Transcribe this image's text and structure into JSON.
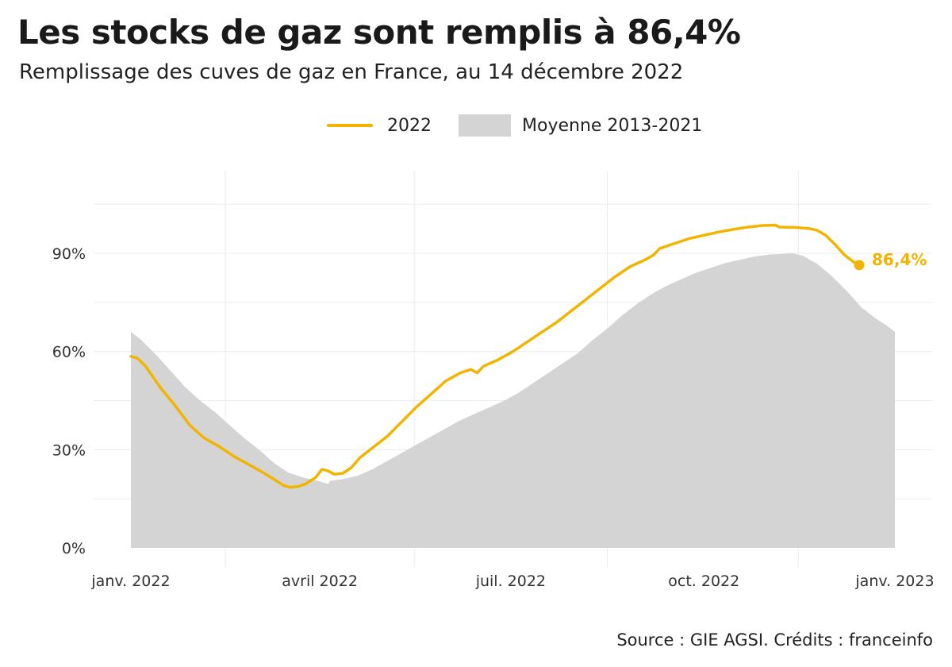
{
  "header": {
    "title": "Les stocks de gaz sont remplis à 86,4%",
    "subtitle": "Remplissage des cuves de gaz en France, au 14 décembre 2022"
  },
  "legend": [
    {
      "label": "2022",
      "kind": "line"
    },
    {
      "label": "Moyenne 2013-2021",
      "kind": "area"
    }
  ],
  "footer": {
    "source": "Source : GIE AGSI. Crédits : franceinfo"
  },
  "colors": {
    "line_2022": "#f2b400",
    "area_avg": "#d4d4d4",
    "grid": "#ececec",
    "text": "#222222"
  },
  "chart_data": {
    "type": "line",
    "title": "Les stocks de gaz sont remplis à 86,4%",
    "subtitle": "Remplissage des cuves de gaz en France, au 14 décembre 2022",
    "x_type": "date",
    "xlim": [
      "2022-01-01",
      "2022-12-31"
    ],
    "ylim": [
      0,
      105
    ],
    "grid": true,
    "legend_position": "top",
    "x_ticks": [
      {
        "date": "2022-01-01",
        "label": "janv. 2022"
      },
      {
        "date": "2022-04-01",
        "label": "avril 2022"
      },
      {
        "date": "2022-07-01",
        "label": "juil. 2022"
      },
      {
        "date": "2022-10-01",
        "label": "oct. 2022"
      },
      {
        "date": "2022-12-31",
        "label": "janv. 2023"
      }
    ],
    "y_ticks": [
      {
        "value": 0,
        "label": "0%"
      },
      {
        "value": 30,
        "label": "30%"
      },
      {
        "value": 60,
        "label": "60%"
      },
      {
        "value": 90,
        "label": "90%"
      }
    ],
    "series": [
      {
        "name": "2022",
        "type": "line",
        "color": "#f2b400",
        "points": [
          [
            "2022-01-01",
            58.5
          ],
          [
            "2022-01-04",
            58.0
          ],
          [
            "2022-01-08",
            55.5
          ],
          [
            "2022-01-15",
            49.0
          ],
          [
            "2022-01-22",
            43.5
          ],
          [
            "2022-01-29",
            37.5
          ],
          [
            "2022-02-05",
            33.5
          ],
          [
            "2022-02-12",
            31.0
          ],
          [
            "2022-02-19",
            28.0
          ],
          [
            "2022-02-26",
            25.5
          ],
          [
            "2022-03-05",
            23.0
          ],
          [
            "2022-03-10",
            21.0
          ],
          [
            "2022-03-15",
            19.0
          ],
          [
            "2022-03-18",
            18.5
          ],
          [
            "2022-03-22",
            18.8
          ],
          [
            "2022-03-25",
            19.5
          ],
          [
            "2022-03-30",
            21.5
          ],
          [
            "2022-04-02",
            24.0
          ],
          [
            "2022-04-05",
            23.5
          ],
          [
            "2022-04-08",
            22.5
          ],
          [
            "2022-04-12",
            22.8
          ],
          [
            "2022-04-16",
            24.5
          ],
          [
            "2022-04-20",
            27.5
          ],
          [
            "2022-04-26",
            30.5
          ],
          [
            "2022-05-03",
            34.0
          ],
          [
            "2022-05-10",
            38.5
          ],
          [
            "2022-05-17",
            43.0
          ],
          [
            "2022-05-24",
            47.0
          ],
          [
            "2022-05-31",
            51.0
          ],
          [
            "2022-06-07",
            53.5
          ],
          [
            "2022-06-12",
            54.5
          ],
          [
            "2022-06-15",
            53.5
          ],
          [
            "2022-06-18",
            55.5
          ],
          [
            "2022-06-25",
            57.5
          ],
          [
            "2022-07-02",
            60.0
          ],
          [
            "2022-07-09",
            63.0
          ],
          [
            "2022-07-16",
            66.0
          ],
          [
            "2022-07-23",
            69.0
          ],
          [
            "2022-07-30",
            72.5
          ],
          [
            "2022-08-06",
            76.0
          ],
          [
            "2022-08-13",
            79.5
          ],
          [
            "2022-08-20",
            83.0
          ],
          [
            "2022-08-27",
            86.0
          ],
          [
            "2022-09-03",
            88.0
          ],
          [
            "2022-09-07",
            89.5
          ],
          [
            "2022-09-10",
            91.5
          ],
          [
            "2022-09-17",
            93.0
          ],
          [
            "2022-09-24",
            94.5
          ],
          [
            "2022-10-01",
            95.5
          ],
          [
            "2022-10-08",
            96.5
          ],
          [
            "2022-10-15",
            97.3
          ],
          [
            "2022-10-22",
            98.0
          ],
          [
            "2022-10-29",
            98.5
          ],
          [
            "2022-11-04",
            98.6
          ],
          [
            "2022-11-06",
            98.0
          ],
          [
            "2022-11-13",
            97.9
          ],
          [
            "2022-11-20",
            97.6
          ],
          [
            "2022-11-24",
            97.0
          ],
          [
            "2022-11-28",
            95.5
          ],
          [
            "2022-12-02",
            93.0
          ],
          [
            "2022-12-07",
            89.5
          ],
          [
            "2022-12-11",
            87.5
          ],
          [
            "2022-12-14",
            86.4
          ]
        ],
        "end_label": "86,4%"
      },
      {
        "name": "Moyenne 2013-2021",
        "type": "area",
        "color": "#d4d4d4",
        "points": [
          [
            "2022-01-01",
            66.0
          ],
          [
            "2022-01-06",
            63.5
          ],
          [
            "2022-01-13",
            59.0
          ],
          [
            "2022-01-20",
            54.0
          ],
          [
            "2022-01-27",
            49.0
          ],
          [
            "2022-02-03",
            45.0
          ],
          [
            "2022-02-10",
            41.5
          ],
          [
            "2022-02-17",
            37.5
          ],
          [
            "2022-02-24",
            33.5
          ],
          [
            "2022-03-03",
            30.0
          ],
          [
            "2022-03-10",
            26.0
          ],
          [
            "2022-03-17",
            23.0
          ],
          [
            "2022-03-24",
            21.5
          ],
          [
            "2022-03-31",
            20.5
          ],
          [
            "2022-04-05",
            19.5
          ],
          [
            "2022-04-06",
            20.5
          ],
          [
            "2022-04-12",
            21.0
          ],
          [
            "2022-04-19",
            22.0
          ],
          [
            "2022-04-26",
            24.0
          ],
          [
            "2022-05-03",
            26.5
          ],
          [
            "2022-05-10",
            29.0
          ],
          [
            "2022-05-17",
            31.5
          ],
          [
            "2022-05-24",
            34.0
          ],
          [
            "2022-05-31",
            36.5
          ],
          [
            "2022-06-07",
            39.0
          ],
          [
            "2022-06-14",
            41.0
          ],
          [
            "2022-06-21",
            43.0
          ],
          [
            "2022-06-28",
            45.0
          ],
          [
            "2022-07-05",
            47.5
          ],
          [
            "2022-07-12",
            50.5
          ],
          [
            "2022-07-19",
            53.5
          ],
          [
            "2022-07-26",
            56.5
          ],
          [
            "2022-08-02",
            59.5
          ],
          [
            "2022-08-09",
            63.5
          ],
          [
            "2022-08-16",
            67.0
          ],
          [
            "2022-08-23",
            71.0
          ],
          [
            "2022-08-30",
            74.5
          ],
          [
            "2022-09-06",
            77.5
          ],
          [
            "2022-09-13",
            80.0
          ],
          [
            "2022-09-20",
            82.0
          ],
          [
            "2022-09-27",
            84.0
          ],
          [
            "2022-10-04",
            85.5
          ],
          [
            "2022-10-11",
            87.0
          ],
          [
            "2022-10-18",
            88.0
          ],
          [
            "2022-10-25",
            89.0
          ],
          [
            "2022-11-01",
            89.6
          ],
          [
            "2022-11-08",
            89.8
          ],
          [
            "2022-11-12",
            90.0
          ],
          [
            "2022-11-17",
            89.3
          ],
          [
            "2022-11-24",
            86.8
          ],
          [
            "2022-12-01",
            83.0
          ],
          [
            "2022-12-08",
            78.5
          ],
          [
            "2022-12-15",
            73.5
          ],
          [
            "2022-12-22",
            70.0
          ],
          [
            "2022-12-27",
            68.0
          ],
          [
            "2022-12-31",
            66.0
          ]
        ]
      }
    ]
  }
}
